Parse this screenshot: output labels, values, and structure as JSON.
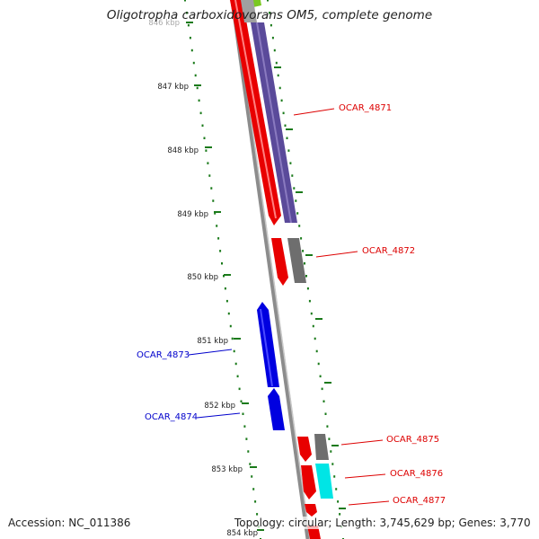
{
  "title": "Oligotropha carboxidovorans OM5, complete genome",
  "accession": "Accession: NC_011386",
  "topology": "Topology: circular; Length: 3,745,629 bp; Genes: 3,770",
  "colors": {
    "ruler": "#1a7a1a",
    "backbone": "#8c8c8c",
    "forward_gene": "#e80000",
    "forward_cds": "#5a4a9a",
    "reverse": "#0000e0",
    "gray_feature": "#6e6e6e",
    "cyan_feature": "#00e5e5",
    "top_green": "#7ac820",
    "label_red": "#dd0000",
    "label_blue": "#0000cc"
  },
  "ruler": {
    "ticks": [
      {
        "label": "846 kbp"
      },
      {
        "label": "847 kbp"
      },
      {
        "label": "848 kbp"
      },
      {
        "label": "849 kbp"
      },
      {
        "label": "850 kbp"
      },
      {
        "label": "851 kbp"
      },
      {
        "label": "852 kbp"
      },
      {
        "label": "853 kbp"
      },
      {
        "label": "854 kbp"
      }
    ]
  },
  "features": [
    {
      "id": "OCAR_4871",
      "strand": "forward",
      "label_color": "#dd0000"
    },
    {
      "id": "OCAR_4872",
      "strand": "forward",
      "label_color": "#dd0000"
    },
    {
      "id": "OCAR_4873",
      "strand": "reverse",
      "label_color": "#0000cc"
    },
    {
      "id": "OCAR_4874",
      "strand": "reverse",
      "label_color": "#0000cc"
    },
    {
      "id": "OCAR_4875",
      "strand": "forward",
      "label_color": "#dd0000"
    },
    {
      "id": "OCAR_4876",
      "strand": "forward",
      "label_color": "#dd0000"
    },
    {
      "id": "OCAR_4877",
      "strand": "forward",
      "label_color": "#dd0000"
    }
  ]
}
